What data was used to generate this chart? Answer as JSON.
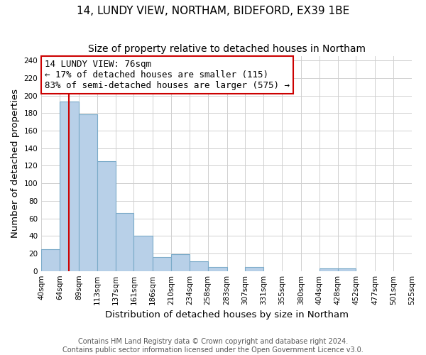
{
  "title": "14, LUNDY VIEW, NORTHAM, BIDEFORD, EX39 1BE",
  "subtitle": "Size of property relative to detached houses in Northam",
  "xlabel": "Distribution of detached houses by size in Northam",
  "ylabel": "Number of detached properties",
  "bin_edges": [
    40,
    64,
    89,
    113,
    137,
    161,
    186,
    210,
    234,
    258,
    283,
    307,
    331,
    355,
    380,
    404,
    428,
    452,
    477,
    501,
    525
  ],
  "bin_labels": [
    "40sqm",
    "64sqm",
    "89sqm",
    "113sqm",
    "137sqm",
    "161sqm",
    "186sqm",
    "210sqm",
    "234sqm",
    "258sqm",
    "283sqm",
    "307sqm",
    "331sqm",
    "355sqm",
    "380sqm",
    "404sqm",
    "428sqm",
    "452sqm",
    "477sqm",
    "501sqm",
    "525sqm"
  ],
  "counts": [
    25,
    193,
    179,
    125,
    66,
    40,
    16,
    19,
    11,
    5,
    0,
    5,
    0,
    0,
    0,
    3,
    3,
    0,
    0,
    0
  ],
  "bar_color": "#b8d0e8",
  "bar_edge_color": "#7aaac8",
  "property_line_x": 76,
  "property_line_color": "#cc0000",
  "annotation_line1": "14 LUNDY VIEW: 76sqm",
  "annotation_line2": "← 17% of detached houses are smaller (115)",
  "annotation_line3": "83% of semi-detached houses are larger (575) →",
  "annotation_box_color": "#ffffff",
  "annotation_box_edge_color": "#cc0000",
  "ylim": [
    0,
    245
  ],
  "yticks": [
    0,
    20,
    40,
    60,
    80,
    100,
    120,
    140,
    160,
    180,
    200,
    220,
    240
  ],
  "footer_line1": "Contains HM Land Registry data © Crown copyright and database right 2024.",
  "footer_line2": "Contains public sector information licensed under the Open Government Licence v3.0.",
  "background_color": "#ffffff",
  "grid_color": "#d0d0d0",
  "title_fontsize": 11,
  "subtitle_fontsize": 10,
  "axis_label_fontsize": 9.5,
  "tick_fontsize": 7.5,
  "annotation_fontsize": 9,
  "footer_fontsize": 7
}
